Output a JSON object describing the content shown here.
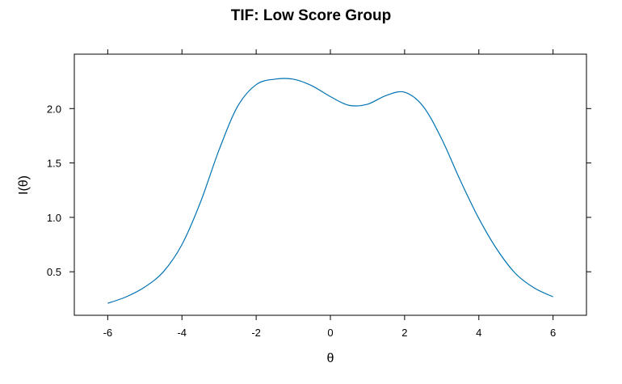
{
  "chart_data": {
    "type": "line",
    "title": "TIF: Low Score Group",
    "xlabel": "θ",
    "ylabel": "I(θ)",
    "xlim": [
      -6.9,
      6.9
    ],
    "ylim": [
      0.1,
      2.5
    ],
    "xticks": [
      -6,
      -4,
      -2,
      0,
      2,
      4,
      6
    ],
    "xtick_labels": [
      "-6",
      "-4",
      "-2",
      "0",
      "2",
      "4",
      "6"
    ],
    "yticks": [
      0.5,
      1.0,
      1.5,
      2.0
    ],
    "ytick_labels": [
      "0.5",
      "1.0",
      "1.5",
      "2.0"
    ],
    "grid": false,
    "series": [
      {
        "color": "#0072b2",
        "x": [
          -6.0,
          -5.5,
          -5.0,
          -4.5,
          -4.0,
          -3.5,
          -3.0,
          -2.5,
          -2.0,
          -1.5,
          -1.0,
          -0.5,
          0.0,
          0.5,
          1.0,
          1.5,
          2.0,
          2.5,
          3.0,
          3.5,
          4.0,
          4.5,
          5.0,
          5.5,
          6.0
        ],
        "y": [
          0.21,
          0.27,
          0.36,
          0.5,
          0.75,
          1.14,
          1.62,
          2.02,
          2.22,
          2.27,
          2.27,
          2.21,
          2.11,
          2.03,
          2.04,
          2.12,
          2.15,
          2.02,
          1.72,
          1.34,
          0.99,
          0.7,
          0.48,
          0.35,
          0.27
        ]
      }
    ]
  }
}
